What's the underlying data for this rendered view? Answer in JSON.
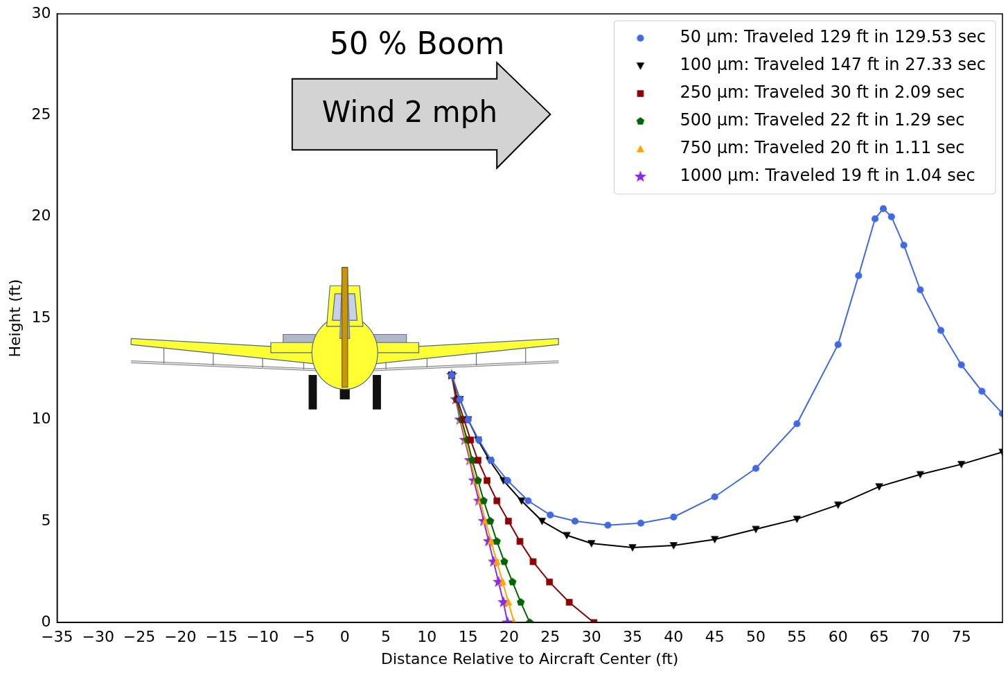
{
  "chart_data": {
    "type": "scatter",
    "title": "50 % Boom",
    "annotations": [
      "Wind 2 mph"
    ],
    "x_label": "Distance Relative to Aircraft Center (ft)",
    "y_label": "Height (ft)",
    "xlim": [
      -35,
      80
    ],
    "xticks": [
      {
        "value": -35,
        "label": "−35"
      },
      {
        "value": -30,
        "label": "−30"
      },
      {
        "value": -25,
        "label": "−25"
      },
      {
        "value": -20,
        "label": "−20"
      },
      {
        "value": -15,
        "label": "−15"
      },
      {
        "value": -10,
        "label": "−10"
      },
      {
        "value": -5,
        "label": "−5"
      },
      0,
      5,
      10,
      15,
      20,
      25,
      30,
      35,
      40,
      45,
      50,
      55,
      60,
      65,
      70,
      75
    ],
    "ylim": [
      0,
      30
    ],
    "yticks": [
      0,
      5,
      10,
      15,
      20,
      25,
      30
    ],
    "grid": false,
    "legend": "upper right",
    "series": [
      {
        "name": "50 μm: Traveled 129 ft in 129.53 sec",
        "color": "#4169e1",
        "marker": "circle",
        "x": [
          13,
          14,
          15,
          16.3,
          17.8,
          19.8,
          22.3,
          25,
          28,
          32,
          36,
          40,
          45,
          50,
          55,
          60,
          62.5,
          64.5,
          65.5,
          66.5,
          68,
          70,
          72.5,
          75,
          77.5,
          80
        ],
        "values": [
          12.2,
          11,
          10,
          9,
          8,
          7,
          6,
          5.3,
          5,
          4.8,
          4.9,
          5.2,
          6.2,
          7.6,
          9.8,
          13.7,
          17.1,
          19.9,
          20.4,
          20,
          18.6,
          16.4,
          14.4,
          12.7,
          11.4,
          10.3
        ]
      },
      {
        "name": "100 μm: Traveled 147 ft in 27.33 sec",
        "color": "#000000",
        "marker": "triangle_down",
        "x": [
          13,
          14,
          15,
          16.2,
          17.6,
          19.3,
          21.5,
          24,
          27,
          30,
          35,
          40,
          45,
          50,
          55,
          60,
          65,
          70,
          75,
          80
        ],
        "values": [
          12.2,
          11,
          10,
          9,
          8,
          7,
          6,
          5,
          4.3,
          3.9,
          3.7,
          3.8,
          4.1,
          4.6,
          5.1,
          5.8,
          6.7,
          7.3,
          7.8,
          8.4
        ]
      },
      {
        "name": "250 μm: Traveled 30 ft in 2.09 sec",
        "color": "#8b0000",
        "marker": "square",
        "x": [
          13,
          13.7,
          14.5,
          15.3,
          16.2,
          17.3,
          18.5,
          19.9,
          21.3,
          22.9,
          24.9,
          27.3,
          30.3
        ],
        "values": [
          12.2,
          11,
          10,
          9,
          8,
          7,
          6,
          5,
          4,
          3,
          2,
          1,
          0
        ]
      },
      {
        "name": "500 μm: Traveled 22 ft in 1.29 sec",
        "color": "#006400",
        "marker": "pentagon",
        "x": [
          13,
          13.6,
          14.2,
          14.9,
          15.5,
          16.2,
          16.9,
          17.7,
          18.5,
          19.4,
          20.4,
          21.4,
          22.5
        ],
        "values": [
          12.2,
          11,
          10,
          9,
          8,
          7,
          6,
          5,
          4,
          3,
          2,
          1,
          0
        ]
      },
      {
        "name": "750 μm: Traveled 20 ft in 1.11 sec",
        "color": "#ffa500",
        "marker": "triangle",
        "x": [
          13,
          13.6,
          14.1,
          14.7,
          15.3,
          15.9,
          16.5,
          17.1,
          17.8,
          18.5,
          19.2,
          19.9,
          20.6
        ],
        "values": [
          12.2,
          11,
          10,
          9,
          8,
          7,
          6,
          5,
          4,
          3,
          2,
          1,
          0
        ]
      },
      {
        "name": "1000 μm: Traveled 19 ft in 1.04 sec",
        "color": "#8a2be2",
        "marker": "star",
        "x": [
          13,
          13.5,
          14,
          14.6,
          15.2,
          15.7,
          16.3,
          16.9,
          17.5,
          18.1,
          18.7,
          19.3,
          19.8
        ],
        "values": [
          12.2,
          11,
          10,
          9,
          8,
          7,
          6,
          5,
          4,
          3,
          2,
          1,
          0
        ]
      }
    ]
  }
}
